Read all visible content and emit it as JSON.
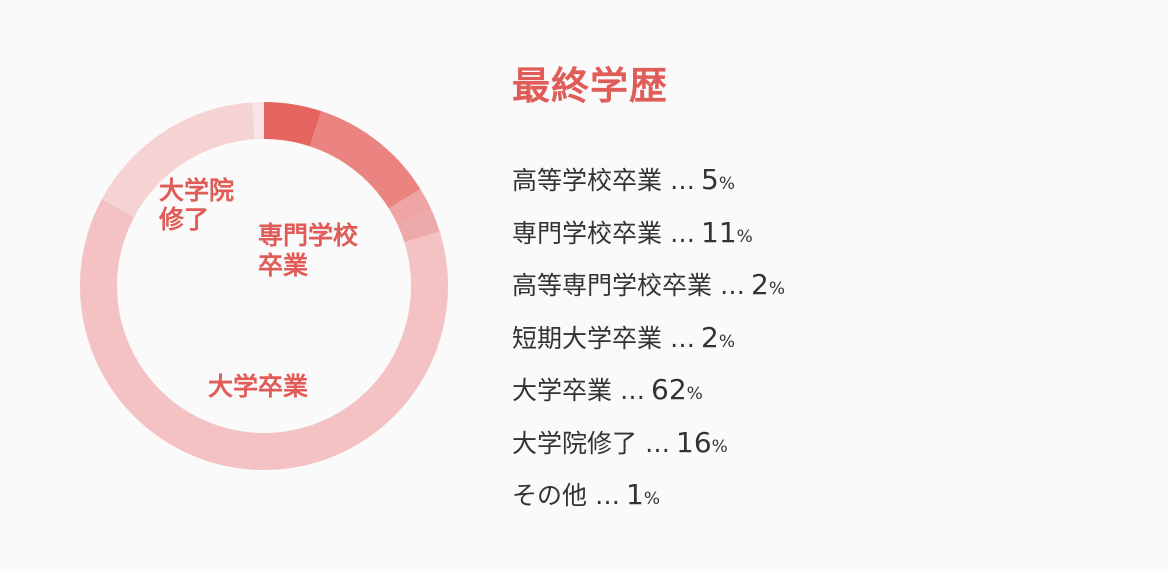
{
  "title": "最終学歴",
  "colors": {
    "accent": "#e05c58",
    "text": "#333333",
    "background": "#fafafa",
    "segments": [
      "#e46560",
      "#eb8381",
      "#eea5a4",
      "#eba9a9",
      "#f4c2c2",
      "#f5d3d3",
      "#f7e5e5"
    ]
  },
  "chart_data": {
    "type": "pie",
    "unit": "%",
    "separator": "…",
    "categories": [
      "高等学校卒業",
      "専門学校卒業",
      "高等専門学校卒業",
      "短期大学卒業",
      "大学卒業",
      "大学院修了",
      "その他"
    ],
    "values": [
      5,
      11,
      2,
      2,
      62,
      16,
      1
    ],
    "inner_labels": [
      {
        "index": 1,
        "lines": [
          "専門学校",
          "卒業"
        ]
      },
      {
        "index": 4,
        "lines": [
          "大学卒業"
        ]
      },
      {
        "index": 5,
        "lines": [
          "大学院",
          "修了"
        ]
      }
    ]
  }
}
